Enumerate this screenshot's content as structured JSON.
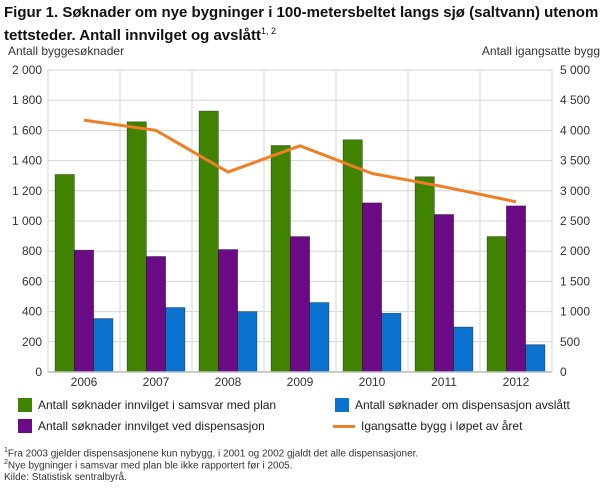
{
  "title": "Figur 1. Søknader om nye bygninger i 100-metersbeltet langs sjø (saltvann) utenom tettsteder. Antall innvilget og avslått",
  "title_sup": "1, 2",
  "footnotes": [
    {
      "sup": "1",
      "text": "Fra 2003 gjelder dispensasjonene kun nybygg, i 2001 og 2002 gjaldt det alle dispensasjoner."
    },
    {
      "sup": "2",
      "text": "Nye bygninger i samsvar med plan ble ikke rapportert før i 2005."
    }
  ],
  "source": "Kilde: Statistisk sentralbyrå.",
  "chart_data": {
    "type": "bar+line",
    "categories": [
      "2006",
      "2007",
      "2008",
      "2009",
      "2010",
      "2011",
      "2012"
    ],
    "ylabel": "Antall byggesøknader",
    "ylabel_right": "Antall igangsatte bygg",
    "ylim": [
      0,
      2000
    ],
    "ylim_right": [
      0,
      5000
    ],
    "yticks": [
      "0",
      "200",
      "400",
      "600",
      "800",
      "1 000",
      "1 200",
      "1 400",
      "1 600",
      "1 800",
      "2 000"
    ],
    "yticks_right": [
      "0",
      "500",
      "1 000",
      "1 500",
      "2 000",
      "2 500",
      "3 000",
      "3 500",
      "4 000",
      "4 500",
      "5 000"
    ],
    "grid": true,
    "legend": "bottom",
    "series": [
      {
        "name": "Antall søknader innvilget i samsvar med plan",
        "type": "bar",
        "axis": "left",
        "color": "#3f8300",
        "values": [
          1308,
          1657,
          1728,
          1500,
          1538,
          1293,
          897
        ]
      },
      {
        "name": "Antall søknader innvilget ved dispensasjon",
        "type": "bar",
        "axis": "left",
        "color": "#6a0a84",
        "values": [
          807,
          765,
          811,
          897,
          1120,
          1043,
          1100
        ]
      },
      {
        "name": "Antall søknader om dispensasjon avslått",
        "type": "bar",
        "axis": "left",
        "color": "#0b72cf",
        "values": [
          354,
          427,
          400,
          460,
          389,
          298,
          181
        ]
      },
      {
        "name": "Igangsatte bygg i løpet av året",
        "type": "line",
        "axis": "right",
        "color": "#f07e24",
        "values": [
          4170,
          4000,
          3310,
          3745,
          3287,
          3066,
          2818
        ]
      }
    ]
  }
}
